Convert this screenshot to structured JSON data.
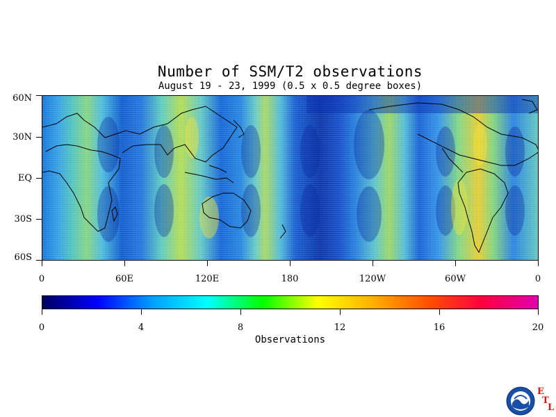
{
  "title": "Number of SSM/T2 observations",
  "subtitle": "August 19 - 23, 1999 (0.5 x 0.5 degree boxes)",
  "map": {
    "lat_labels": [
      "60N",
      "30N",
      "EQ",
      "30S",
      "60S"
    ],
    "lon_labels": [
      "0",
      "60E",
      "120E",
      "180",
      "120W",
      "60W",
      "0"
    ]
  },
  "colorbar": {
    "title": "Observations",
    "labels": [
      "0",
      "4",
      "8",
      "12",
      "16",
      "20"
    ],
    "range": [
      0,
      20
    ],
    "colors": [
      "#000060",
      "#0000ff",
      "#00a0ff",
      "#00ffff",
      "#00ff00",
      "#ffff00",
      "#ffb000",
      "#ff5000",
      "#ff0040",
      "#e000b0"
    ]
  },
  "logo": {
    "icon": "noaa-logo-icon",
    "letters": [
      "E",
      "T",
      "L"
    ],
    "accent": "#e01010"
  }
}
